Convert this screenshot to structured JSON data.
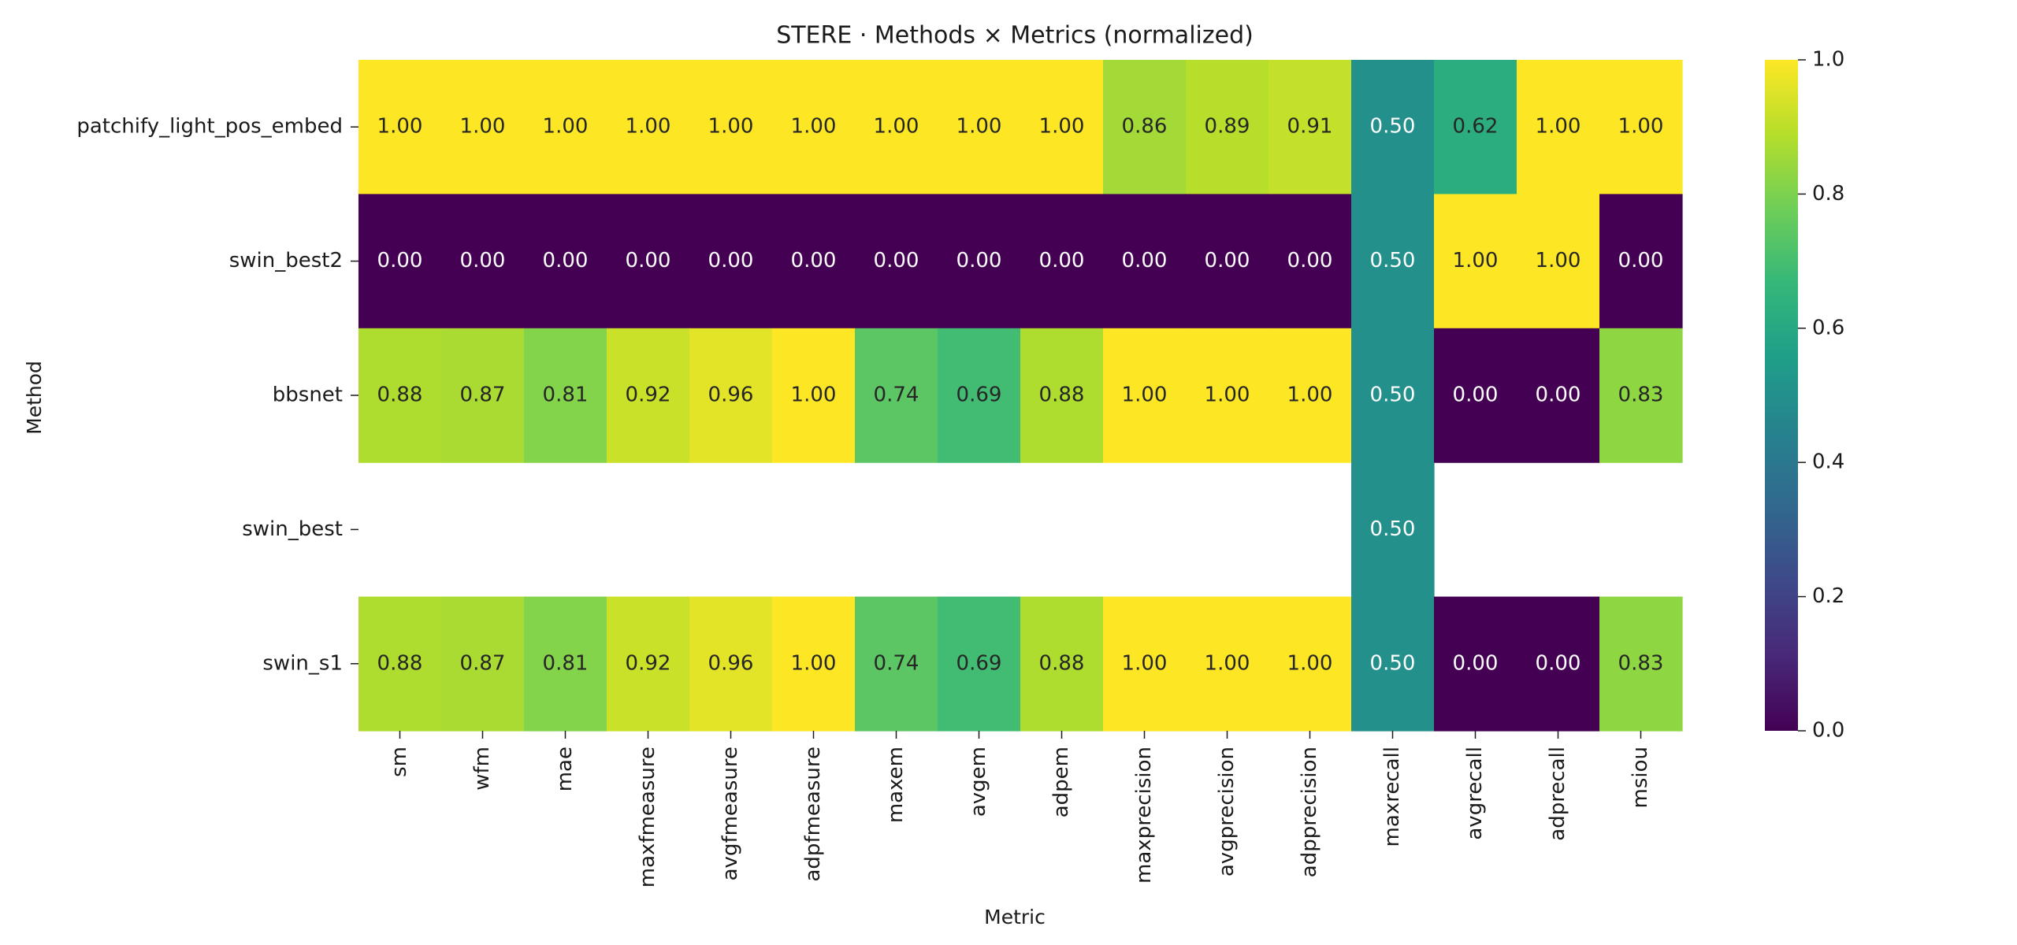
{
  "chart_data": {
    "type": "heatmap",
    "title": "STERE · Methods × Metrics (normalized)",
    "xlabel": "Metric",
    "ylabel": "Method",
    "columns": [
      "sm",
      "wfm",
      "mae",
      "maxfmeasure",
      "avgfmeasure",
      "adpfmeasure",
      "maxem",
      "avgem",
      "adpem",
      "maxprecision",
      "avgprecision",
      "adpprecision",
      "maxrecall",
      "avgrecall",
      "adprecall",
      "msiou"
    ],
    "rows": [
      "patchify_light_pos_embed",
      "swin_best2",
      "bbsnet",
      "swin_best",
      "swin_s1"
    ],
    "values": [
      [
        1.0,
        1.0,
        1.0,
        1.0,
        1.0,
        1.0,
        1.0,
        1.0,
        1.0,
        0.86,
        0.89,
        0.91,
        0.5,
        0.62,
        1.0,
        1.0
      ],
      [
        0.0,
        0.0,
        0.0,
        0.0,
        0.0,
        0.0,
        0.0,
        0.0,
        0.0,
        0.0,
        0.0,
        0.0,
        0.5,
        1.0,
        1.0,
        0.0
      ],
      [
        0.88,
        0.87,
        0.81,
        0.92,
        0.96,
        1.0,
        0.74,
        0.69,
        0.88,
        1.0,
        1.0,
        1.0,
        0.5,
        0.0,
        0.0,
        0.83
      ],
      [
        null,
        null,
        null,
        null,
        null,
        null,
        null,
        null,
        null,
        null,
        null,
        null,
        0.5,
        null,
        null,
        null
      ],
      [
        0.88,
        0.87,
        0.81,
        0.92,
        0.96,
        1.0,
        0.74,
        0.69,
        0.88,
        1.0,
        1.0,
        1.0,
        0.5,
        0.0,
        0.0,
        0.83
      ]
    ],
    "value_format": "0.00",
    "colormap": "viridis",
    "vmin": 0.0,
    "vmax": 1.0,
    "colorbar": {
      "ticks": [
        "0.0",
        "0.2",
        "0.4",
        "0.6",
        "0.8",
        "1.0"
      ]
    },
    "colors": {
      "viridis_stops": [
        "#440154",
        "#482878",
        "#3e4989",
        "#31688e",
        "#26828e",
        "#1f9e89",
        "#35b779",
        "#6ece58",
        "#b5de2b",
        "#fde725"
      ],
      "text_dark": "#262626",
      "text_light": "#ffffff",
      "missing": "#ffffff"
    }
  }
}
